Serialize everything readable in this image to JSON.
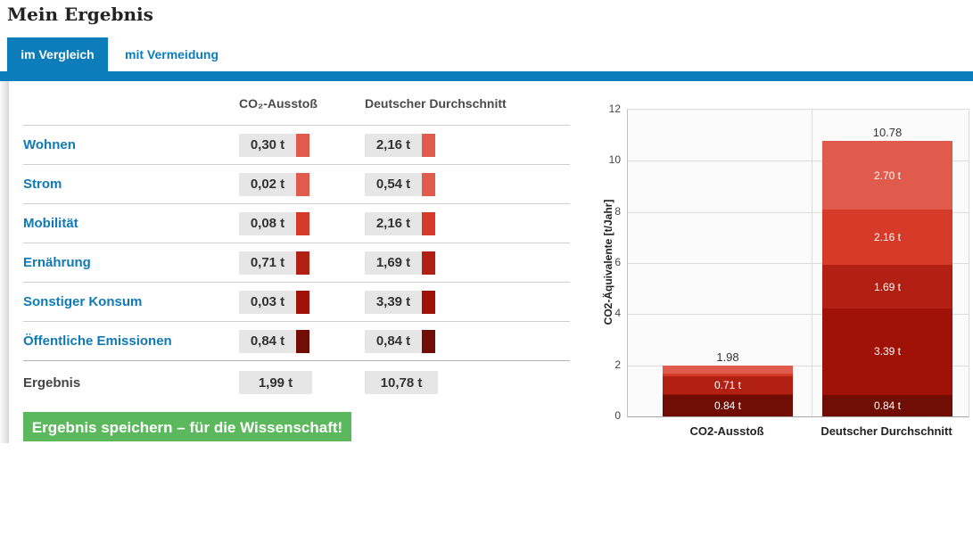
{
  "page_title": "Mein Ergebnis",
  "tabs": [
    {
      "label": "im Vergleich",
      "active": true
    },
    {
      "label": "mit Vermeidung",
      "active": false
    }
  ],
  "accent_colors": {
    "blue": "#0c7cba",
    "green": "#5cb85c"
  },
  "table": {
    "headers": {
      "emission": "CO₂-Ausstoß",
      "average": "Deutscher Durchschnitt"
    },
    "rows": [
      {
        "label": "Wohnen",
        "value": "0,30 t",
        "average": "2,16 t",
        "color": "#e15b4c"
      },
      {
        "label": "Strom",
        "value": "0,02 t",
        "average": "0,54 t",
        "color": "#e15b4c"
      },
      {
        "label": "Mobilität",
        "value": "0,08 t",
        "average": "2,16 t",
        "color": "#d63a28"
      },
      {
        "label": "Ernährung",
        "value": "0,71 t",
        "average": "1,69 t",
        "color": "#b22014"
      },
      {
        "label": "Sonstiger Konsum",
        "value": "0,03 t",
        "average": "3,39 t",
        "color": "#a01108"
      },
      {
        "label": "Öffentliche Emissionen",
        "value": "0,84 t",
        "average": "0,84 t",
        "color": "#700e06"
      }
    ],
    "result": {
      "label": "Ergebnis",
      "value": "1,99 t",
      "average": "10,78 t"
    }
  },
  "save_button_label": "Ergebnis speichern – für die Wissenschaft!",
  "chart_data": {
    "type": "stacked-bar",
    "title": "",
    "ylabel": "CO2-Äquivalente [t/Jahr]",
    "xlabel": "",
    "ylim": [
      0,
      12
    ],
    "ytick_step": 2,
    "grid": true,
    "categories": [
      "CO2-Ausstoß",
      "Deutscher Durchschnitt"
    ],
    "series": [
      {
        "name": "Öffentliche Emissionen",
        "color": "#700e06",
        "values": [
          0.84,
          0.84
        ],
        "labels": [
          "0.84 t",
          "0.84 t"
        ]
      },
      {
        "name": "Sonstiger Konsum",
        "color": "#a01108",
        "values": [
          0.03,
          3.39
        ],
        "labels": [
          "",
          "3.39 t"
        ]
      },
      {
        "name": "Ernährung",
        "color": "#b22014",
        "values": [
          0.71,
          1.69
        ],
        "labels": [
          "0.71 t",
          "1.69 t"
        ]
      },
      {
        "name": "Mobilität",
        "color": "#d63a28",
        "values": [
          0.08,
          2.16
        ],
        "labels": [
          "",
          "2.16 t"
        ]
      },
      {
        "name": "Wohnen & Strom",
        "color": "#e15b4c",
        "values": [
          0.32,
          2.7
        ],
        "labels": [
          "",
          "2.70 t"
        ]
      }
    ],
    "totals": [
      "1.98",
      "10.78"
    ]
  }
}
